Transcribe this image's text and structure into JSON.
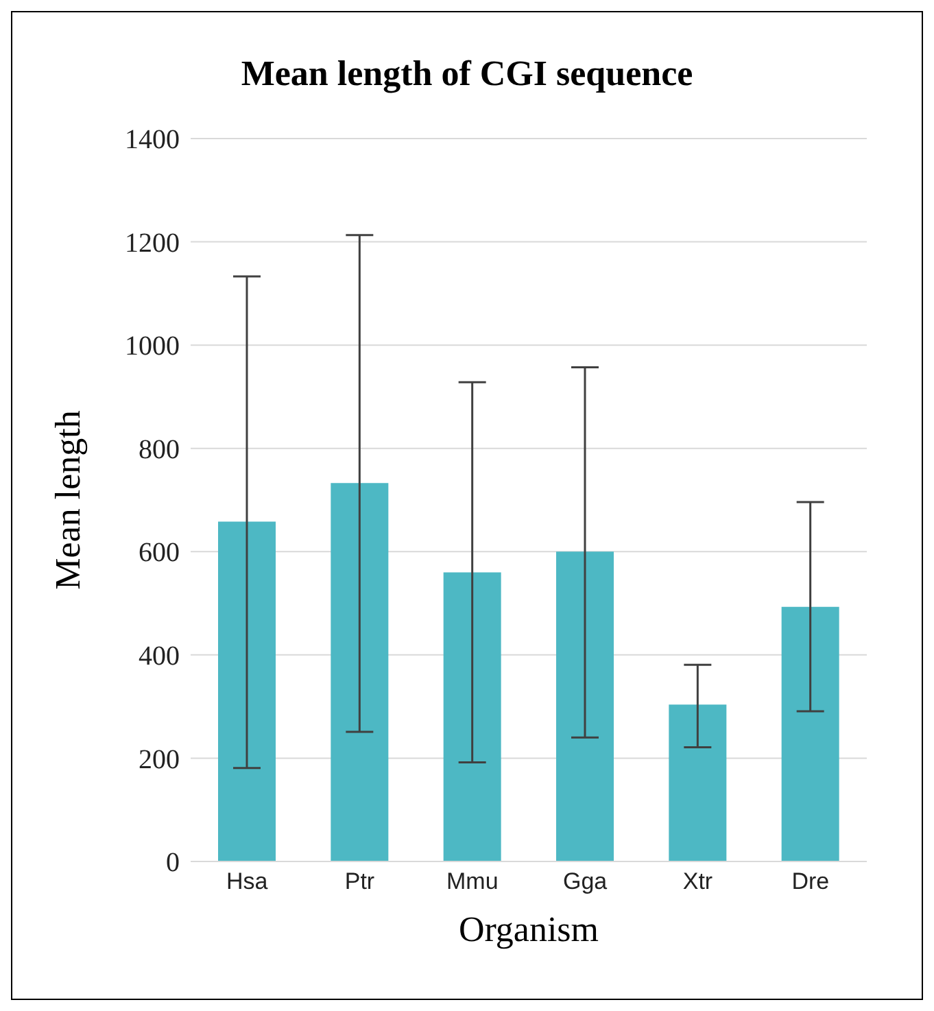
{
  "chart_data": {
    "type": "bar",
    "title": "Mean length of CGI sequence",
    "xlabel": "Organism",
    "ylabel": "Mean length",
    "categories": [
      "Hsa",
      "Ptr",
      "Mmu",
      "Gga",
      "Xtr",
      "Dre"
    ],
    "values": [
      658,
      733,
      560,
      600,
      304,
      493
    ],
    "errors": [
      [
        181,
        1133
      ],
      [
        251,
        1213
      ],
      [
        192,
        928
      ],
      [
        240,
        957
      ],
      [
        221,
        381
      ],
      [
        291,
        696
      ]
    ],
    "color": "#4db8c4",
    "ylim": [
      0,
      1400
    ],
    "yticks": [
      0,
      200,
      400,
      600,
      800,
      1000,
      1200,
      1400
    ],
    "grid": "y",
    "legend": false
  }
}
